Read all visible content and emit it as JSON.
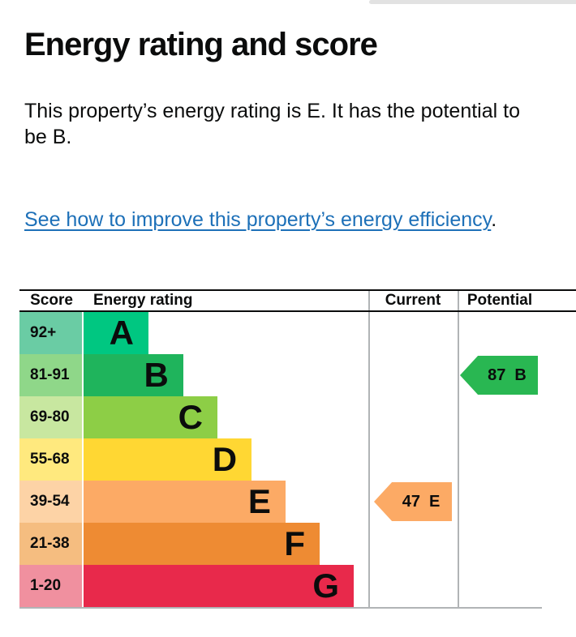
{
  "page": {
    "title": "Energy rating and score",
    "intro": "This property’s energy rating is E. It has the potential to be B.",
    "link_text": "See how to improve this property’s energy efficiency",
    "link_suffix": ".",
    "link_color": "#1d70b8"
  },
  "chart": {
    "headers": {
      "score": "Score",
      "rating": "Energy rating",
      "current": "Current",
      "potential": "Potential"
    },
    "bands": [
      {
        "range": "92+",
        "letter": "A",
        "bar_color": "#00c781",
        "score_color": "#6acca4",
        "width_pct": 22.8
      },
      {
        "range": "81-91",
        "letter": "B",
        "bar_color": "#1fb45c",
        "score_color": "#8fd789",
        "width_pct": 35.0
      },
      {
        "range": "69-80",
        "letter": "C",
        "bar_color": "#8dce46",
        "score_color": "#c8e7a0",
        "width_pct": 47.0
      },
      {
        "range": "55-68",
        "letter": "D",
        "bar_color": "#ffd733",
        "score_color": "#ffe97e",
        "width_pct": 59.0
      },
      {
        "range": "39-54",
        "letter": "E",
        "bar_color": "#fcaa65",
        "score_color": "#fdd3a6",
        "width_pct": 70.9
      },
      {
        "range": "21-38",
        "letter": "F",
        "bar_color": "#ee8b33",
        "score_color": "#f5bd80",
        "width_pct": 82.9
      },
      {
        "range": "1-20",
        "letter": "G",
        "bar_color": "#e8294b",
        "score_color": "#f0909f",
        "width_pct": 94.9
      }
    ],
    "current": {
      "score": "47",
      "band": "E",
      "color": "#fcaa65",
      "row_index": 4
    },
    "potential": {
      "score": "87",
      "band": "B",
      "color": "#29b752",
      "row_index": 1
    },
    "border_color": "#b1b4b6"
  },
  "chart_data": {
    "type": "bar",
    "title": "Energy rating and score",
    "categories": [
      "A",
      "B",
      "C",
      "D",
      "E",
      "F",
      "G"
    ],
    "score_ranges": [
      "92+",
      "81-91",
      "69-80",
      "55-68",
      "39-54",
      "21-38",
      "1-20"
    ],
    "bar_width_pct_of_rating_column": [
      22.8,
      35.0,
      47.0,
      59.0,
      70.9,
      82.9,
      94.9
    ],
    "columns": [
      "Score",
      "Energy rating",
      "Current",
      "Potential"
    ],
    "current_rating": {
      "score": 47,
      "band": "E"
    },
    "potential_rating": {
      "score": 87,
      "band": "B"
    },
    "legend_position": "none",
    "grid": false
  }
}
